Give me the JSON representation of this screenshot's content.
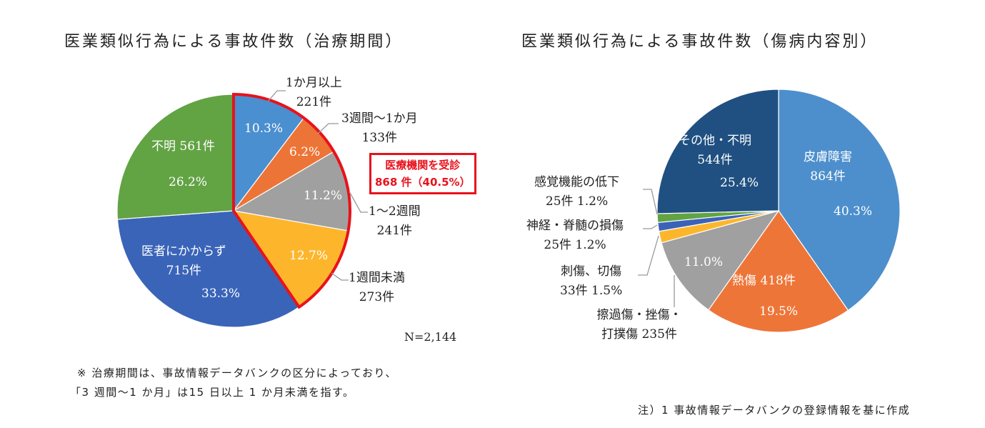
{
  "chart_data": [
    {
      "type": "pie",
      "title": "医業類似行為による事故件数（治療期間）",
      "total_label": "N=2,144",
      "start": "top-clockwise",
      "slices": [
        {
          "name": "1か月以上",
          "count": 221,
          "count_label": "221件",
          "percent": "10.3%",
          "color": "#4a8fd0"
        },
        {
          "name": "3週間〜1か月",
          "count": 133,
          "count_label": "133件",
          "percent": "6.2%",
          "color": "#ed7437"
        },
        {
          "name": "1〜2週間",
          "count": 241,
          "count_label": "241件",
          "percent": "11.2%",
          "color": "#a0a0a0"
        },
        {
          "name": "1週間未満",
          "count": 273,
          "count_label": "273件",
          "percent": "12.7%",
          "color": "#fdb62c"
        },
        {
          "name": "医者にかからず",
          "count": 715,
          "count_label": "715件",
          "percent": "33.3%",
          "color": "#3a64b8"
        },
        {
          "name": "不明",
          "count": 561,
          "count_label": "561件",
          "percent": "26.2%",
          "color": "#62a344"
        }
      ],
      "highlight": {
        "line1": "医療機関を受診",
        "line2": "868 件（40.5%）",
        "color": "#e8121c",
        "slices": 4
      },
      "footnote": [
        "※ 治療期間は、事故情報データバンクの区分によっており、",
        "「3 週間〜1 か月」は15 日以上 1 か月未満を指す。"
      ]
    },
    {
      "type": "pie",
      "title": "医業類似行為による事故件数（傷病内容別）",
      "start": "top-clockwise",
      "slices": [
        {
          "name": "皮膚障害",
          "count": 864,
          "count_label": "864件",
          "percent": "40.3%",
          "color": "#4d8fcc"
        },
        {
          "name": "熱傷",
          "count": 418,
          "count_label": "418件",
          "percent": "19.5%",
          "color": "#ee7538"
        },
        {
          "name": "擦過傷・挫傷・打撲傷",
          "count": 235,
          "count_label": "235件",
          "percent": "11.0%",
          "color": "#a0a0a0"
        },
        {
          "name": "刺傷、切傷",
          "count": 33,
          "count_label": "33件",
          "percent": "1.5%",
          "color": "#fdb62c"
        },
        {
          "name": "神経・脊髄の損傷",
          "count": 25,
          "count_label": "25件",
          "percent": "1.2%",
          "color": "#3a63b8"
        },
        {
          "name": "感覚機能の低下",
          "count": 25,
          "count_label": "25件",
          "percent": "1.2%",
          "color": "#62a344"
        },
        {
          "name": "その他・不明",
          "count": 544,
          "count_label": "544件",
          "percent": "25.4%",
          "color": "#1f5081"
        }
      ],
      "footnote": "注）1 事故情報データバンクの登録情報を基に作成"
    }
  ]
}
